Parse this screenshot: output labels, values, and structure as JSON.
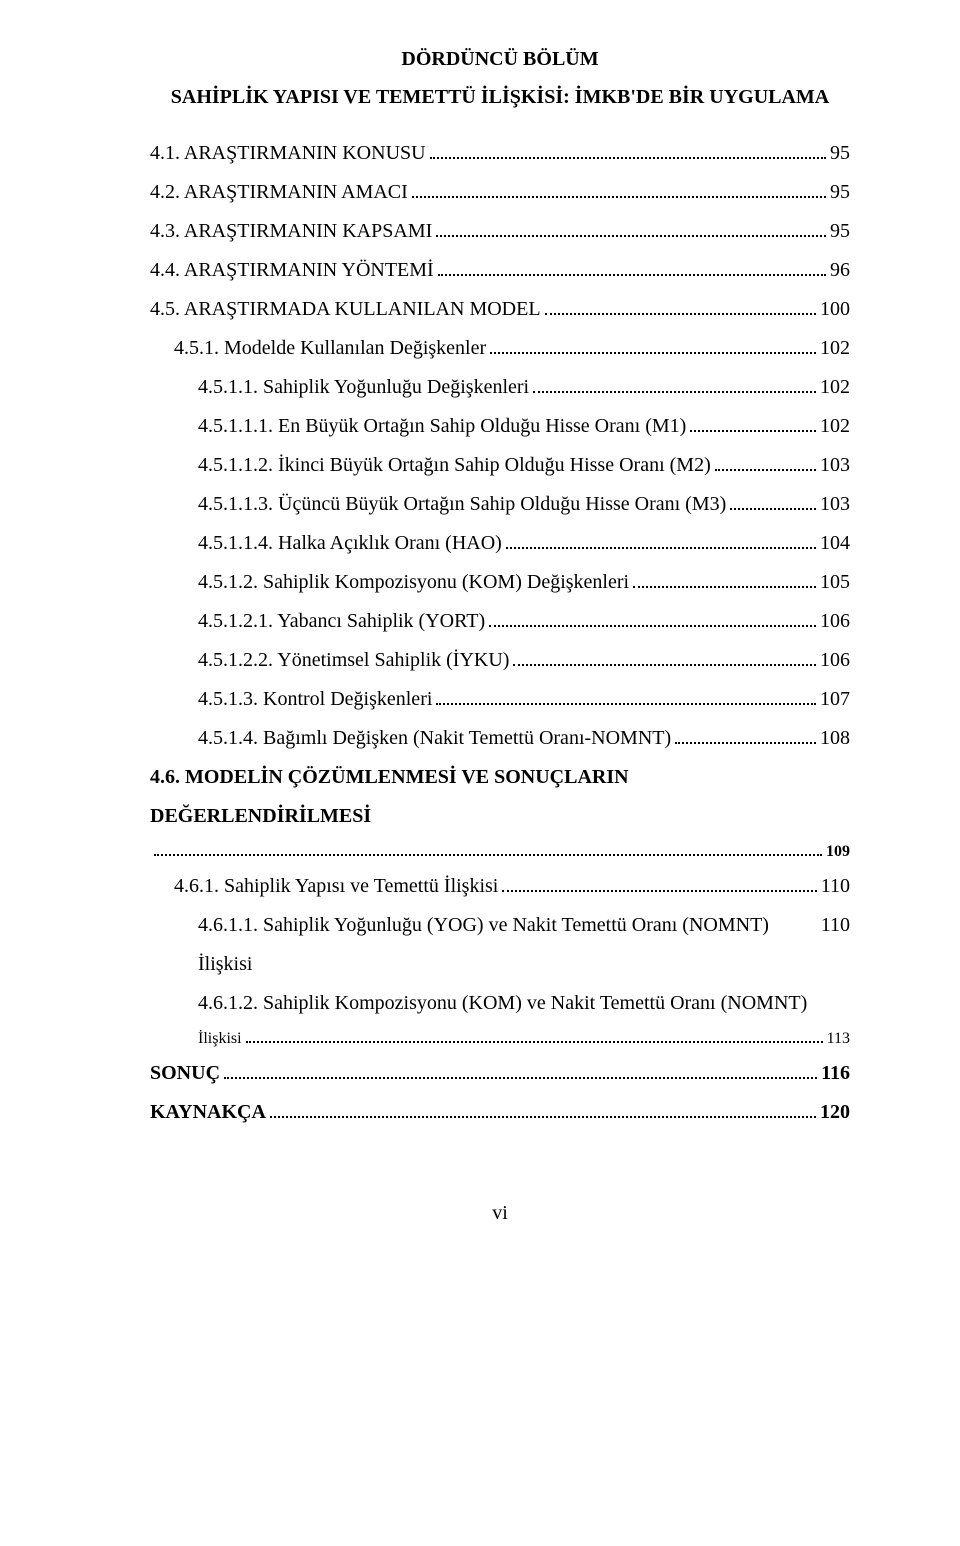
{
  "heading": {
    "line1": "DÖRDÜNCÜ BÖLÜM",
    "line2": "SAHİPLİK YAPISI VE TEMETTÜ İLİŞKİSİ: İMKB'DE BİR UYGULAMA"
  },
  "toc": [
    {
      "indent": 0,
      "bold": false,
      "label": "4.1. ARAŞTIRMANIN KONUSU",
      "page": "95"
    },
    {
      "indent": 0,
      "bold": false,
      "label": "4.2. ARAŞTIRMANIN AMACI",
      "page": "95"
    },
    {
      "indent": 0,
      "bold": false,
      "label": "4.3. ARAŞTIRMANIN KAPSAMI",
      "page": "95"
    },
    {
      "indent": 0,
      "bold": false,
      "label": "4.4. ARAŞTIRMANIN YÖNTEMİ",
      "page": "96"
    },
    {
      "indent": 0,
      "bold": false,
      "label": "4.5. ARAŞTIRMADA KULLANILAN MODEL",
      "page": "100"
    },
    {
      "indent": 1,
      "bold": false,
      "label": "4.5.1. Modelde Kullanılan Değişkenler",
      "page": "102"
    },
    {
      "indent": 2,
      "bold": false,
      "label": "4.5.1.1. Sahiplik Yoğunluğu Değişkenleri",
      "page": "102"
    },
    {
      "indent": 2,
      "bold": false,
      "label": "4.5.1.1.1. En Büyük Ortağın Sahip Olduğu Hisse Oranı (M1)",
      "page": "102"
    },
    {
      "indent": 2,
      "bold": false,
      "label": "4.5.1.1.2. İkinci Büyük Ortağın Sahip Olduğu Hisse Oranı (M2)",
      "page": "103"
    },
    {
      "indent": 2,
      "bold": false,
      "label": "4.5.1.1.3. Üçüncü Büyük Ortağın Sahip Olduğu Hisse Oranı (M3)",
      "page": "103"
    },
    {
      "indent": 2,
      "bold": false,
      "label": "4.5.1.1.4. Halka Açıklık Oranı (HAO)",
      "page": "104"
    },
    {
      "indent": 2,
      "bold": false,
      "label": "4.5.1.2. Sahiplik Kompozisyonu (KOM) Değişkenleri",
      "page": "105"
    },
    {
      "indent": 2,
      "bold": false,
      "label": "4.5.1.2.1. Yabancı Sahiplik (YORT)",
      "page": "106"
    },
    {
      "indent": 2,
      "bold": false,
      "label": "4.5.1.2.2. Yönetimsel Sahiplik (İYKU)",
      "page": "106"
    },
    {
      "indent": 2,
      "bold": false,
      "label": "4.5.1.3. Kontrol Değişkenleri",
      "page": "107"
    },
    {
      "indent": 2,
      "bold": false,
      "label": "4.5.1.4. Bağımlı Değişken (Nakit Temettü Oranı-NOMNT)",
      "page": "108"
    },
    {
      "indent": 0,
      "bold": true,
      "label_twoline": [
        "4.6. MODELİN ÇÖZÜMLENMESİ VE SONUÇLARIN DEĞERLENDİRİLMESİ",
        ""
      ],
      "page": "109"
    },
    {
      "indent": 1,
      "bold": false,
      "label": "4.6.1. Sahiplik Yapısı ve Temettü İlişkisi",
      "page": "110"
    },
    {
      "indent": 2,
      "bold": false,
      "label": "4.6.1.1. Sahiplik Yoğunluğu (YOG) ve Nakit Temettü Oranı (NOMNT) İlişkisi",
      "page": "110",
      "noleader": true
    },
    {
      "indent": 2,
      "bold": false,
      "label_twoline": [
        "4.6.1.2. Sahiplik Kompozisyonu (KOM) ve Nakit Temettü Oranı (NOMNT)",
        "İlişkisi"
      ],
      "page": "113"
    },
    {
      "indent": 0,
      "bold": true,
      "label": "SONUÇ",
      "page": "116"
    },
    {
      "indent": 0,
      "bold": true,
      "label": "KAYNAKÇA",
      "page": "120"
    }
  ],
  "page_number": "vi"
}
